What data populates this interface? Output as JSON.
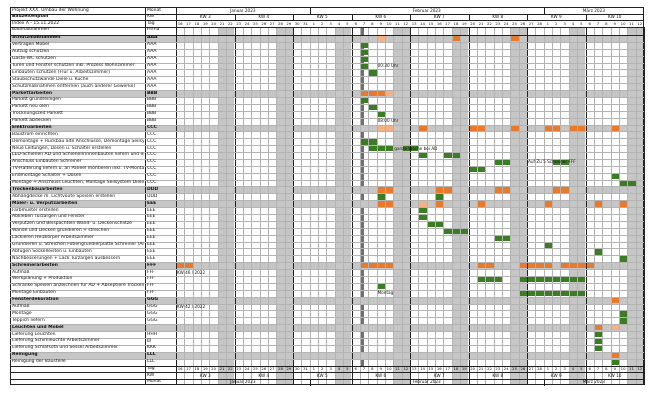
{
  "header": {
    "project": "Projekt XXX, Umbau der Wohnung",
    "title": "Bauzeitenplan",
    "index": "Index A - 15.11.2022",
    "col_label": "Baumaßnahmen",
    "monat": "Monat",
    "kw": "KW",
    "tag": "Tag",
    "firma": "Firma"
  },
  "months": [
    "Januar 2023",
    "Februar 2023",
    "März 2023"
  ],
  "weeks": [
    "KW 3",
    "KW 4",
    "KW 5",
    "KW 6",
    "KW 7",
    "KW 8",
    "KW 9",
    "KW 10"
  ],
  "days": [
    "16",
    "17",
    "18",
    "19",
    "20",
    "21",
    "22",
    "23",
    "24",
    "25",
    "26",
    "27",
    "28",
    "29",
    "30",
    "31",
    "1",
    "2",
    "3",
    "4",
    "5",
    "6",
    "7",
    "8",
    "9",
    "10",
    "11",
    "12",
    "13",
    "14",
    "15",
    "16",
    "17",
    "18",
    "19",
    "20",
    "21",
    "22",
    "23",
    "24",
    "25",
    "26",
    "27",
    "28",
    "1",
    "2",
    "3",
    "4",
    "5",
    "6",
    "7",
    "8",
    "9",
    "10",
    "11",
    "12"
  ],
  "tasks": [
    {
      "name": "Schutzmaßnahmen",
      "firma": "AAA",
      "section": true
    },
    {
      "name": "Vertragen Möbel",
      "firma": "AAA"
    },
    {
      "name": "Aufzug schützen",
      "firma": "AAA"
    },
    {
      "name": "Gäste-WC schützen",
      "firma": "AAA"
    },
    {
      "name": "Türen und Fenster schützen inkl. Prozess Wohnzimmer",
      "firma": "AAA"
    },
    {
      "name": "Einbauten schützen (Flur u. Arbeitszimmer)",
      "firma": "AAA"
    },
    {
      "name": "Staubschutzwände Diele u. Küche",
      "firma": "AAA"
    },
    {
      "name": "Schutzmaßnahmen entfernen (auch anderer Gewerke)",
      "firma": "AAA"
    },
    {
      "name": "Parkettarbeiten",
      "firma": "BBB",
      "section": true
    },
    {
      "name": "Parkett grundreinigen",
      "firma": "BBB"
    },
    {
      "name": "Parkett neu ölen",
      "firma": "BBB"
    },
    {
      "name": "Trocknungszeit Parkett",
      "firma": "BBB"
    },
    {
      "name": "Parkett abdecken",
      "firma": "BBB"
    },
    {
      "name": "Elektroarbeiten",
      "firma": "CCC",
      "section": true
    },
    {
      "name": "Baustrom einrichten",
      "firma": "CCC"
    },
    {
      "name": "Demontage + Rückbau alte Anschlüsse, Demontage Seilsystem",
      "firma": "CCC"
    },
    {
      "name": "Neue Leitungen, Dosen u. Schalter erstellen",
      "firma": "CCC"
    },
    {
      "name": "LED-Schienen AD und Schienenrinnenbauten liefern und einbauen",
      "firma": "CCC"
    },
    {
      "name": "Anschluss Einbauten Schreiner",
      "firma": "CCC"
    },
    {
      "name": "TV-Halterung liefern u. an Paneel montieren inkl. TV-Montage",
      "firma": "CCC"
    },
    {
      "name": "Endmontage Schalter + Dosen",
      "firma": "CCC"
    },
    {
      "name": "Montage + Anschluss Leuchten, Montage Seilsystem Diele",
      "firma": "CCC"
    },
    {
      "name": "Trockenbauarbeiten",
      "firma": "DDD",
      "section": true
    },
    {
      "name": "Abhangdecke m. Lichtvoute Speisen erstellen",
      "firma": "DDD"
    },
    {
      "name": "Maler- u. Verputzarbeiten",
      "firma": "EEE",
      "section": true
    },
    {
      "name": "Farbmuster erstellen",
      "firma": "EEE"
    },
    {
      "name": "Abkleben Türzargen und Fenster",
      "firma": "EEE"
    },
    {
      "name": "Verputzen und Beispachteln Wand- u. Deckenschlitze",
      "firma": "EEE"
    },
    {
      "name": "Wände und Decken grundieren + streichen",
      "firma": "EEE"
    },
    {
      "name": "Lackieren Heizkörper Arbeitszimmer",
      "firma": "EEE"
    },
    {
      "name": "Grundieren u. Streichen Fotiengrundierplatte Schreiner (Arb.zi)",
      "firma": "EEE"
    },
    {
      "name": "Abfugen Sockelleisten u. Einbauten",
      "firma": "EEE"
    },
    {
      "name": "Nachbesserungen + Lack Türzargen ausbessern",
      "firma": "EEE"
    },
    {
      "name": "Schreinerarbeiten",
      "firma": "FFF",
      "section": true
    },
    {
      "name": "Aufmaß",
      "firma": "FFF"
    },
    {
      "name": "Werkplanung + Produktion",
      "firma": "FFF"
    },
    {
      "name": "Schränke Speisen anzeichnen für AD + Abseptiere Trockenbauer",
      "firma": "FFF"
    },
    {
      "name": "Montage Einbauten",
      "firma": "FFF"
    },
    {
      "name": "Fensterdekoration",
      "firma": "GGG",
      "section": true
    },
    {
      "name": "Aufmaß",
      "firma": "GGG"
    },
    {
      "name": "Montage",
      "firma": "GGG"
    },
    {
      "name": "Teppich liefern",
      "firma": "GGG"
    },
    {
      "name": "Leuchten und Möbel",
      "firma": "",
      "section": true
    },
    {
      "name": "Lieferung Leuchten",
      "firma": "HHH"
    },
    {
      "name": "Lieferung Schimleuchte Arbeitszimmer",
      "firma": "JJJ"
    },
    {
      "name": "Lieferung Schlafsofa und Sessel Arbeitszimmer",
      "firma": "KKK"
    },
    {
      "name": "Reinigung",
      "firma": "LLL",
      "section": true
    },
    {
      "name": "Reinigung der Baustelle",
      "firma": "LLL"
    }
  ],
  "notes": [
    {
      "row": 4,
      "col": 24,
      "text": "00:30 Uhr"
    },
    {
      "row": 12,
      "col": 24,
      "text": "08:00 Uhr"
    },
    {
      "row": 16,
      "col": 26,
      "text": "ganze Woche bei AD"
    },
    {
      "row": 18,
      "col": 42,
      "text": "Auf Zu 5 Schreiner FFF"
    },
    {
      "row": 34,
      "col": 0,
      "text": "KW 46 / 2022"
    },
    {
      "row": 37,
      "col": 24,
      "text": "Montag"
    },
    {
      "row": 39,
      "col": 0,
      "text": "KW 42 / 2022"
    }
  ],
  "colors": {
    "plan": "#e87a2e",
    "plan_light": "#f4b183",
    "done": "#3a7d22",
    "weekend": "#c6c6c6",
    "section": "#c6c6c6",
    "today": "#707070"
  }
}
